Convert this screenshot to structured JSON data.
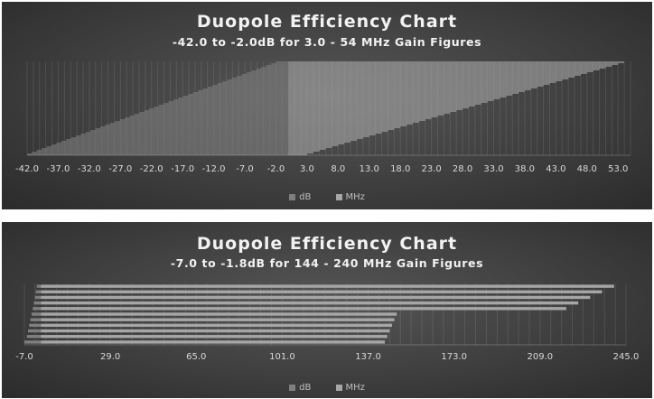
{
  "chart_data": [
    {
      "type": "bar",
      "orientation": "horizontal",
      "title": "Duopole Efficiency Chart",
      "subtitle": "-42.0 to -2.0dB for 3.0 - 54 MHz Gain Figures",
      "xlim": [
        -42,
        55
      ],
      "ticks": [
        "-42.0",
        "-37.0",
        "-32.0",
        "-27.0",
        "-22.0",
        "-17.0",
        "-12.0",
        "-7.0",
        "-2.0",
        "3.0",
        "8.0",
        "13.0",
        "18.0",
        "23.0",
        "28.0",
        "33.0",
        "38.0",
        "43.0",
        "48.0",
        "53.0"
      ],
      "db_range": [
        -42.0,
        -2.0
      ],
      "mhz_range": [
        3.0,
        54.0
      ],
      "count": 52,
      "grid": true,
      "legend_position": "bottom",
      "series": [
        {
          "name": "dB",
          "color": "#7f7f7f"
        },
        {
          "name": "MHz",
          "color": "#a6a6a6"
        }
      ]
    },
    {
      "type": "bar",
      "orientation": "horizontal",
      "title": "Duopole Efficiency Chart",
      "subtitle": "-7.0 to -1.8dB for 144 - 240 MHz Gain Figures",
      "xlim": [
        -7,
        245
      ],
      "ticks": [
        "-7.0",
        "29.0",
        "65.0",
        "101.0",
        "137.0",
        "173.0",
        "209.0",
        "245.0"
      ],
      "rows": [
        {
          "db": -7.0,
          "mhz": 144
        },
        {
          "db": -6.0,
          "mhz": 145
        },
        {
          "db": -5.5,
          "mhz": 146
        },
        {
          "db": -5.0,
          "mhz": 147
        },
        {
          "db": -4.5,
          "mhz": 148
        },
        {
          "db": -4.0,
          "mhz": 149
        },
        {
          "db": -3.5,
          "mhz": 220
        },
        {
          "db": -3.0,
          "mhz": 225
        },
        {
          "db": -2.6,
          "mhz": 230
        },
        {
          "db": -2.2,
          "mhz": 235
        },
        {
          "db": -1.8,
          "mhz": 240
        }
      ],
      "grid": true,
      "legend_position": "bottom",
      "series": [
        {
          "name": "dB",
          "color": "#7f7f7f"
        },
        {
          "name": "MHz",
          "color": "#a6a6a6"
        }
      ]
    }
  ]
}
